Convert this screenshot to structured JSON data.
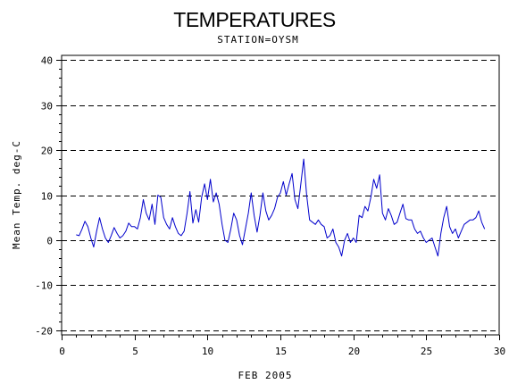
{
  "chart_data": {
    "type": "line",
    "title": "TEMPERATURES",
    "subtitle": "STATION=OYSM",
    "xlabel": "FEB 2005",
    "ylabel": "Mean Temp. deg-C",
    "xlim": [
      0,
      30
    ],
    "ylim": [
      -21,
      41
    ],
    "x_ticks": [
      0,
      5,
      10,
      15,
      20,
      25,
      30
    ],
    "x_tick_labels": [
      "0",
      "5",
      "10",
      "15",
      "20",
      "25",
      "30"
    ],
    "y_ticks": [
      -20,
      -10,
      0,
      10,
      20,
      30,
      40
    ],
    "y_tick_labels": [
      "-20",
      "-10",
      "0",
      "10",
      "20",
      "30",
      "40"
    ],
    "grid": "horizontal dashed at major y ticks",
    "line_color": "#0000cc",
    "series": [
      {
        "values": [
          [
            1.0,
            1.2
          ],
          [
            1.2,
            1.0
          ],
          [
            1.4,
            2.5
          ],
          [
            1.6,
            4.2
          ],
          [
            1.8,
            3.0
          ],
          [
            2.0,
            0.5
          ],
          [
            2.2,
            -1.5
          ],
          [
            2.4,
            2.0
          ],
          [
            2.6,
            5.0
          ],
          [
            2.8,
            2.5
          ],
          [
            3.0,
            0.5
          ],
          [
            3.2,
            -0.5
          ],
          [
            3.4,
            1.0
          ],
          [
            3.6,
            2.8
          ],
          [
            3.8,
            1.5
          ],
          [
            4.0,
            0.5
          ],
          [
            4.2,
            1.0
          ],
          [
            4.4,
            2.0
          ],
          [
            4.6,
            3.8
          ],
          [
            4.8,
            3.0
          ],
          [
            5.0,
            3.0
          ],
          [
            5.2,
            2.5
          ],
          [
            5.4,
            5.0
          ],
          [
            5.6,
            9.0
          ],
          [
            5.8,
            6.0
          ],
          [
            6.0,
            4.5
          ],
          [
            6.2,
            8.0
          ],
          [
            6.4,
            3.5
          ],
          [
            6.6,
            10.0
          ],
          [
            6.8,
            9.5
          ],
          [
            7.0,
            5.0
          ],
          [
            7.2,
            3.5
          ],
          [
            7.4,
            2.5
          ],
          [
            7.6,
            5.0
          ],
          [
            7.8,
            3.0
          ],
          [
            8.0,
            1.5
          ],
          [
            8.2,
            1.0
          ],
          [
            8.4,
            2.0
          ],
          [
            8.6,
            6.0
          ],
          [
            8.8,
            10.8
          ],
          [
            9.0,
            3.8
          ],
          [
            9.2,
            6.8
          ],
          [
            9.4,
            4.0
          ],
          [
            9.6,
            9.5
          ],
          [
            9.8,
            12.5
          ],
          [
            10.0,
            9.0
          ],
          [
            10.2,
            13.5
          ],
          [
            10.4,
            8.5
          ],
          [
            10.6,
            10.5
          ],
          [
            10.8,
            8.0
          ],
          [
            11.0,
            3.5
          ],
          [
            11.2,
            0.0
          ],
          [
            11.4,
            -0.5
          ],
          [
            11.6,
            2.5
          ],
          [
            11.8,
            6.0
          ],
          [
            12.0,
            4.5
          ],
          [
            12.2,
            1.0
          ],
          [
            12.4,
            -1.0
          ],
          [
            12.6,
            2.5
          ],
          [
            12.8,
            6.0
          ],
          [
            13.0,
            10.5
          ],
          [
            13.2,
            5.5
          ],
          [
            13.4,
            1.8
          ],
          [
            13.6,
            5.5
          ],
          [
            13.8,
            10.5
          ],
          [
            14.0,
            6.5
          ],
          [
            14.2,
            4.5
          ],
          [
            14.4,
            5.5
          ],
          [
            14.6,
            7.0
          ],
          [
            14.8,
            9.5
          ],
          [
            15.0,
            10.5
          ],
          [
            15.2,
            13.0
          ],
          [
            15.4,
            10.0
          ],
          [
            15.6,
            12.5
          ],
          [
            15.8,
            14.8
          ],
          [
            16.0,
            9.0
          ],
          [
            16.2,
            7.0
          ],
          [
            16.4,
            12.5
          ],
          [
            16.6,
            18.0
          ],
          [
            16.8,
            10.0
          ],
          [
            17.0,
            4.5
          ],
          [
            17.2,
            4.0
          ],
          [
            17.4,
            3.5
          ],
          [
            17.6,
            4.5
          ],
          [
            17.8,
            3.5
          ],
          [
            18.0,
            3.0
          ],
          [
            18.2,
            0.5
          ],
          [
            18.4,
            1.0
          ],
          [
            18.6,
            2.5
          ],
          [
            18.8,
            -0.5
          ],
          [
            19.0,
            -1.5
          ],
          [
            19.2,
            -3.5
          ],
          [
            19.4,
            0.0
          ],
          [
            19.6,
            1.5
          ],
          [
            19.8,
            -0.5
          ],
          [
            20.0,
            0.5
          ],
          [
            20.2,
            -0.5
          ],
          [
            20.4,
            5.5
          ],
          [
            20.6,
            5.0
          ],
          [
            20.8,
            7.5
          ],
          [
            21.0,
            6.5
          ],
          [
            21.2,
            9.5
          ],
          [
            21.4,
            13.5
          ],
          [
            21.6,
            11.5
          ],
          [
            21.8,
            14.5
          ],
          [
            22.0,
            6.0
          ],
          [
            22.2,
            4.5
          ],
          [
            22.4,
            7.0
          ],
          [
            22.6,
            5.5
          ],
          [
            22.8,
            3.5
          ],
          [
            23.0,
            4.0
          ],
          [
            23.2,
            6.0
          ],
          [
            23.4,
            8.0
          ],
          [
            23.6,
            4.8
          ],
          [
            23.8,
            4.5
          ],
          [
            24.0,
            4.5
          ],
          [
            24.2,
            2.5
          ],
          [
            24.4,
            1.5
          ],
          [
            24.6,
            2.0
          ],
          [
            24.8,
            0.5
          ],
          [
            25.0,
            -0.5
          ],
          [
            25.2,
            0.0
          ],
          [
            25.4,
            0.5
          ],
          [
            25.6,
            -1.5
          ],
          [
            25.8,
            -3.5
          ],
          [
            26.0,
            1.5
          ],
          [
            26.2,
            5.0
          ],
          [
            26.4,
            7.5
          ],
          [
            26.6,
            3.0
          ],
          [
            26.8,
            1.5
          ],
          [
            27.0,
            2.5
          ],
          [
            27.2,
            0.5
          ],
          [
            27.4,
            2.0
          ],
          [
            27.6,
            3.5
          ],
          [
            27.8,
            4.0
          ],
          [
            28.0,
            4.5
          ],
          [
            28.2,
            4.5
          ],
          [
            28.4,
            5.0
          ],
          [
            28.6,
            6.5
          ],
          [
            28.8,
            4.0
          ],
          [
            29.0,
            2.5
          ]
        ]
      }
    ]
  }
}
